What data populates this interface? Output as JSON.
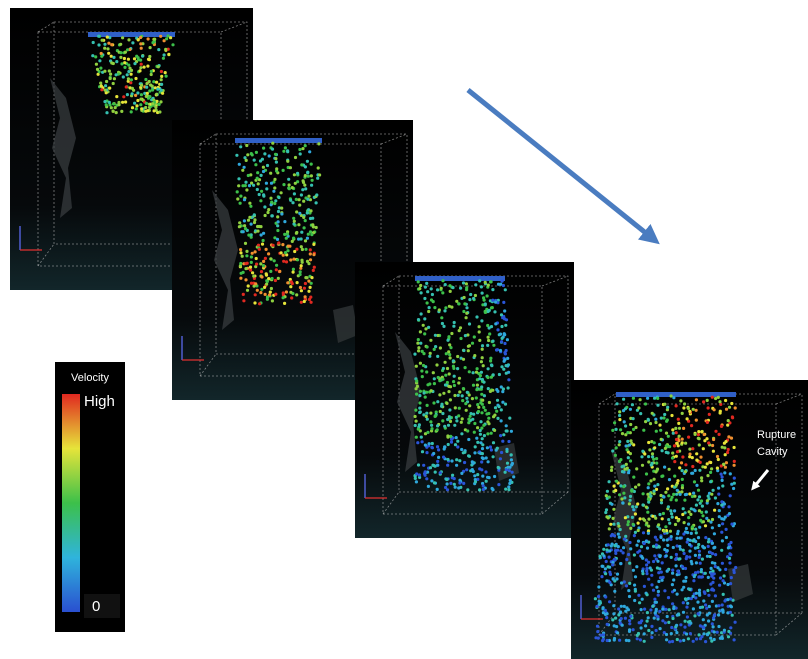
{
  "colorbar": {
    "title": "Velocity",
    "high": "High",
    "low": "0"
  },
  "annotation": {
    "lines": [
      "Rupture",
      "Cavity"
    ]
  }
}
